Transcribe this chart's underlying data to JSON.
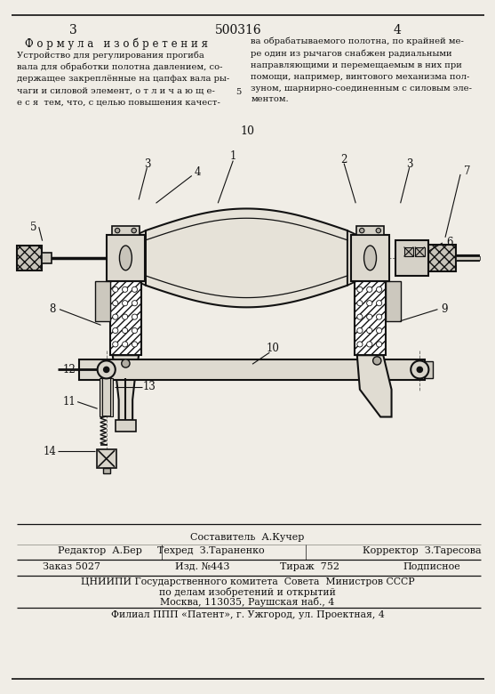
{
  "page_width": 7.07,
  "page_height": 10.0,
  "bg_color": "#f0ede6",
  "text_color": "#111111",
  "line_color": "#111111",
  "page_num_left": "3",
  "patent_num": "500316",
  "page_num_right": "4",
  "section_title": "Ф о р м у л а   и з о б р е т е н и я",
  "bottom_composer": "Составитель  А.Кучер",
  "bottom_editor": "Редактор  А.Бер",
  "bottom_tech": "Техред  З.Тараненко",
  "bottom_corrector": "Корректор  З.Таресова",
  "bottom_order": "Заказ 5027",
  "bottom_izd": "Изд. №443",
  "bottom_tirazh": "Тираж  752",
  "bottom_podp": "Подписное",
  "bottom_org1": "ЦНИИПИ Государственного комитета  Совета  Министров СССР",
  "bottom_org2": "по делам изобретений и открытий",
  "bottom_org3": "Москва, 113035, Раушская наб., 4",
  "bottom_filial": "Филиал ППП «Патент», г. Ужгород, ул. Проектная, 4"
}
